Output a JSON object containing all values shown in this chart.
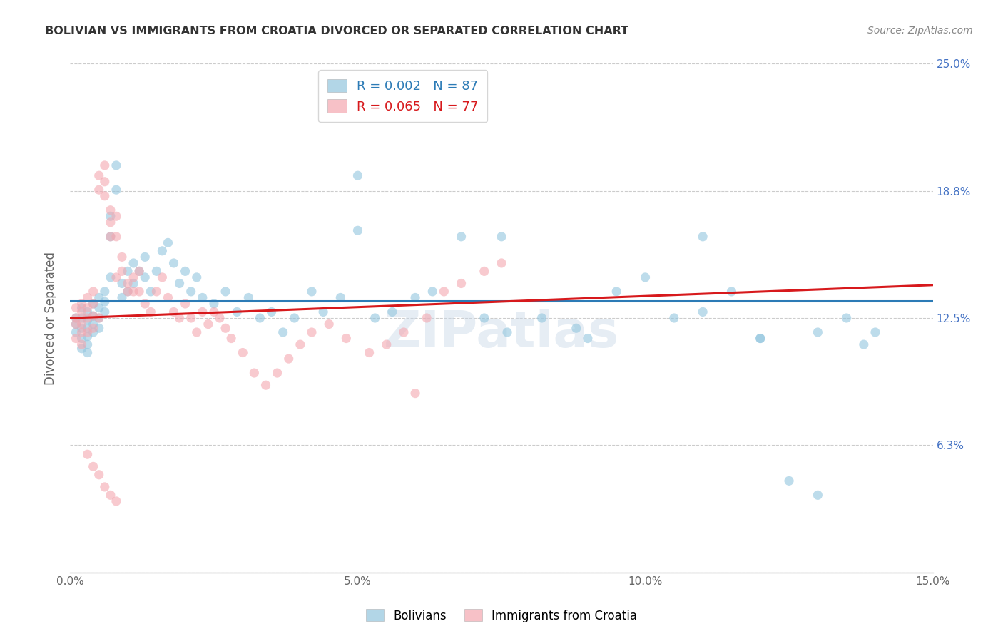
{
  "title": "BOLIVIAN VS IMMIGRANTS FROM CROATIA DIVORCED OR SEPARATED CORRELATION CHART",
  "source": "Source: ZipAtlas.com",
  "ylabel": "Divorced or Separated",
  "xlim": [
    0.0,
    0.15
  ],
  "ylim": [
    0.0,
    0.25
  ],
  "xtick_vals": [
    0.0,
    0.05,
    0.1,
    0.15
  ],
  "xtick_labels": [
    "0.0%",
    "5.0%",
    "10.0%",
    "15.0%"
  ],
  "ytick_vals": [
    0.0,
    0.0625,
    0.125,
    0.1875,
    0.25
  ],
  "ytick_labels_right": [
    "",
    "6.3%",
    "12.5%",
    "18.8%",
    "25.0%"
  ],
  "legend1_r": "0.002",
  "legend1_n": "87",
  "legend2_r": "0.065",
  "legend2_n": "77",
  "blue_color": "#92c5de",
  "pink_color": "#f4a7b0",
  "trendline_blue_color": "#2c7bb6",
  "trendline_pink_color": "#d7191c",
  "watermark": "ZIPatlas",
  "background_color": "#ffffff",
  "grid_color": "#cccccc",
  "title_color": "#333333",
  "right_tick_color": "#4472c4",
  "blue_scatter_x": [
    0.001,
    0.001,
    0.001,
    0.002,
    0.002,
    0.002,
    0.002,
    0.002,
    0.003,
    0.003,
    0.003,
    0.003,
    0.003,
    0.003,
    0.004,
    0.004,
    0.004,
    0.004,
    0.005,
    0.005,
    0.005,
    0.005,
    0.006,
    0.006,
    0.006,
    0.007,
    0.007,
    0.007,
    0.008,
    0.008,
    0.009,
    0.009,
    0.01,
    0.01,
    0.011,
    0.011,
    0.012,
    0.013,
    0.013,
    0.014,
    0.015,
    0.016,
    0.017,
    0.018,
    0.019,
    0.02,
    0.021,
    0.022,
    0.023,
    0.025,
    0.027,
    0.029,
    0.031,
    0.033,
    0.035,
    0.037,
    0.039,
    0.042,
    0.044,
    0.047,
    0.05,
    0.053,
    0.056,
    0.06,
    0.063,
    0.068,
    0.072,
    0.076,
    0.082,
    0.088,
    0.095,
    0.1,
    0.105,
    0.11,
    0.115,
    0.12,
    0.125,
    0.13,
    0.135,
    0.14,
    0.05,
    0.075,
    0.09,
    0.11,
    0.12,
    0.13,
    0.138
  ],
  "blue_scatter_y": [
    0.125,
    0.122,
    0.118,
    0.13,
    0.125,
    0.12,
    0.115,
    0.11,
    0.128,
    0.124,
    0.12,
    0.116,
    0.112,
    0.108,
    0.132,
    0.126,
    0.122,
    0.118,
    0.135,
    0.13,
    0.125,
    0.12,
    0.138,
    0.133,
    0.128,
    0.175,
    0.165,
    0.145,
    0.2,
    0.188,
    0.142,
    0.135,
    0.148,
    0.138,
    0.152,
    0.142,
    0.148,
    0.155,
    0.145,
    0.138,
    0.148,
    0.158,
    0.162,
    0.152,
    0.142,
    0.148,
    0.138,
    0.145,
    0.135,
    0.132,
    0.138,
    0.128,
    0.135,
    0.125,
    0.128,
    0.118,
    0.125,
    0.138,
    0.128,
    0.135,
    0.168,
    0.125,
    0.128,
    0.135,
    0.138,
    0.165,
    0.125,
    0.118,
    0.125,
    0.12,
    0.138,
    0.145,
    0.125,
    0.128,
    0.138,
    0.115,
    0.045,
    0.038,
    0.125,
    0.118,
    0.195,
    0.165,
    0.115,
    0.165,
    0.115,
    0.118,
    0.112
  ],
  "pink_scatter_x": [
    0.001,
    0.001,
    0.001,
    0.001,
    0.002,
    0.002,
    0.002,
    0.002,
    0.002,
    0.003,
    0.003,
    0.003,
    0.003,
    0.004,
    0.004,
    0.004,
    0.004,
    0.005,
    0.005,
    0.005,
    0.006,
    0.006,
    0.006,
    0.007,
    0.007,
    0.007,
    0.008,
    0.008,
    0.008,
    0.009,
    0.009,
    0.01,
    0.01,
    0.011,
    0.011,
    0.012,
    0.012,
    0.013,
    0.014,
    0.015,
    0.016,
    0.017,
    0.018,
    0.019,
    0.02,
    0.021,
    0.022,
    0.023,
    0.024,
    0.025,
    0.026,
    0.027,
    0.028,
    0.03,
    0.032,
    0.034,
    0.036,
    0.038,
    0.04,
    0.042,
    0.045,
    0.048,
    0.052,
    0.055,
    0.058,
    0.062,
    0.065,
    0.068,
    0.072,
    0.075,
    0.003,
    0.004,
    0.005,
    0.006,
    0.007,
    0.008,
    0.06
  ],
  "pink_scatter_y": [
    0.13,
    0.125,
    0.122,
    0.115,
    0.132,
    0.128,
    0.122,
    0.118,
    0.112,
    0.135,
    0.13,
    0.125,
    0.118,
    0.138,
    0.132,
    0.126,
    0.12,
    0.195,
    0.188,
    0.125,
    0.2,
    0.192,
    0.185,
    0.178,
    0.172,
    0.165,
    0.145,
    0.175,
    0.165,
    0.155,
    0.148,
    0.142,
    0.138,
    0.145,
    0.138,
    0.148,
    0.138,
    0.132,
    0.128,
    0.138,
    0.145,
    0.135,
    0.128,
    0.125,
    0.132,
    0.125,
    0.118,
    0.128,
    0.122,
    0.128,
    0.125,
    0.12,
    0.115,
    0.108,
    0.098,
    0.092,
    0.098,
    0.105,
    0.112,
    0.118,
    0.122,
    0.115,
    0.108,
    0.112,
    0.118,
    0.125,
    0.138,
    0.142,
    0.148,
    0.152,
    0.058,
    0.052,
    0.048,
    0.042,
    0.038,
    0.035,
    0.088
  ]
}
